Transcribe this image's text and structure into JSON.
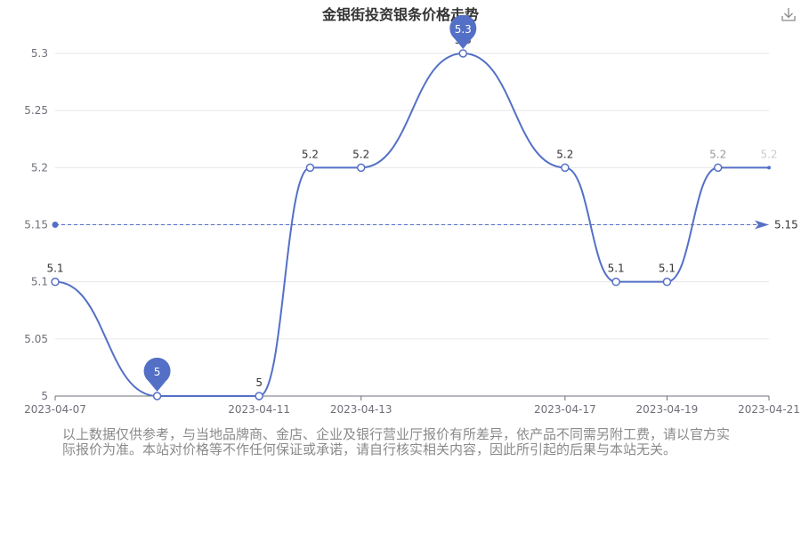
{
  "toolbar": {
    "download_icon": "download-icon"
  },
  "disclaimer": "以上数据仅供参考，与当地品牌商、金店、企业及银行营业厅报价有所差异，依产品不同需另附工费，请以官方实际报价为准。本站对价格等不作任何保证或承诺，请自行核实相关内容，因此所引起的后果与本站无关。",
  "colors": {
    "series": "#5470c6",
    "grid": "#e6e6e6",
    "axis": "#6e7079",
    "text": "#333333"
  },
  "chart_data": {
    "type": "line",
    "title": "金银街投资银条价格走势",
    "x": [
      "2023-04-07",
      "2023-04-09",
      "2023-04-11",
      "2023-04-12",
      "2023-04-13",
      "2023-04-15",
      "2023-04-17",
      "2023-04-18",
      "2023-04-19",
      "2023-04-20",
      "2023-04-21"
    ],
    "values": [
      5.1,
      5.0,
      5.0,
      5.2,
      5.2,
      5.3,
      5.2,
      5.1,
      5.1,
      5.2,
      5.2
    ],
    "point_labels": [
      "5.1",
      "5",
      "5",
      "5.2",
      "5.2",
      "5.3",
      "5.2",
      "5.1",
      "5.1",
      "5.2",
      "5.2"
    ],
    "x_ticks": [
      "2023-04-07",
      "2023-04-11",
      "2023-04-13",
      "2023-04-17",
      "2023-04-19",
      "2023-04-21"
    ],
    "y_ticks": [
      "5",
      "5.05",
      "5.1",
      "5.15",
      "5.2",
      "5.25",
      "5.3"
    ],
    "ylim": [
      5.0,
      5.3
    ],
    "smooth": true,
    "grid": true,
    "mark_points": [
      {
        "type": "min",
        "label": "5",
        "index": 1
      },
      {
        "type": "max",
        "label": "5.3",
        "index": 5
      }
    ],
    "mark_line": {
      "type": "average",
      "value": 5.15,
      "label": "5.15"
    }
  }
}
